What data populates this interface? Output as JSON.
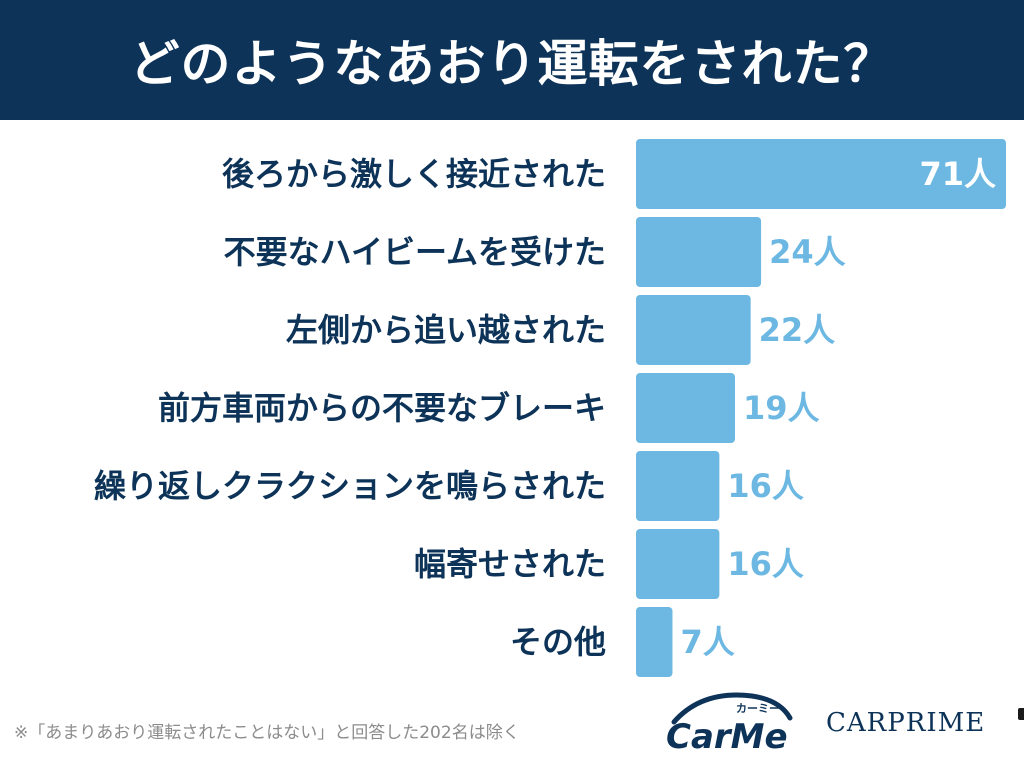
{
  "header": {
    "title": "どのようなあおり運転をされた？"
  },
  "chart_data": {
    "type": "bar",
    "orientation": "horizontal",
    "categories": [
      "後ろから激しく接近された",
      "不要なハイビームを受けた",
      "左側から追い越された",
      "前方車両からの不要なブレーキ",
      "繰り返しクラクションを鳴らされた",
      "幅寄せされた",
      "その他"
    ],
    "values": [
      71,
      24,
      22,
      19,
      16,
      16,
      7
    ],
    "value_labels": [
      "71人",
      "24人",
      "22人",
      "19人",
      "16人",
      "16人",
      "7人"
    ],
    "xlim": [
      0,
      71
    ],
    "grid": false,
    "bar_color": "#6cb8e2",
    "label_color": "#0d3358",
    "value_label_color_outside": "#6cb8e2",
    "value_label_color_inside": "#ffffff"
  },
  "footnote": "※「あまりあおり運転されたことはない」と回答した202名は除く",
  "logos": {
    "carme_text": "CarMe",
    "carme_kana": "カーミー",
    "carprime": "CARPRIME"
  },
  "colors": {
    "header_bg": "#0d3358",
    "bar": "#6cb8e2",
    "text_dark": "#0d3358",
    "footnote": "#8c8c8c"
  }
}
